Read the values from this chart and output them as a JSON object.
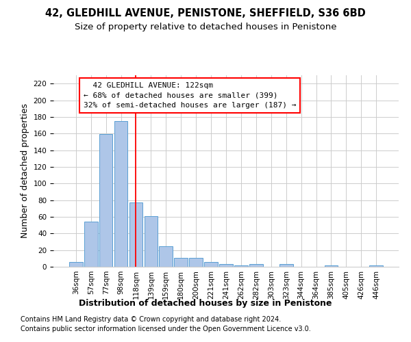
{
  "title1": "42, GLEDHILL AVENUE, PENISTONE, SHEFFIELD, S36 6BD",
  "title2": "Size of property relative to detached houses in Penistone",
  "xlabel": "Distribution of detached houses by size in Penistone",
  "ylabel": "Number of detached properties",
  "footnote1": "Contains HM Land Registry data © Crown copyright and database right 2024.",
  "footnote2": "Contains public sector information licensed under the Open Government Licence v3.0.",
  "categories": [
    "36sqm",
    "57sqm",
    "77sqm",
    "98sqm",
    "118sqm",
    "139sqm",
    "159sqm",
    "180sqm",
    "200sqm",
    "221sqm",
    "241sqm",
    "262sqm",
    "282sqm",
    "303sqm",
    "323sqm",
    "344sqm",
    "364sqm",
    "385sqm",
    "405sqm",
    "426sqm",
    "446sqm"
  ],
  "values": [
    6,
    54,
    159,
    175,
    77,
    61,
    25,
    11,
    11,
    6,
    3,
    2,
    3,
    0,
    3,
    0,
    0,
    2,
    0,
    0,
    2
  ],
  "bar_color": "#aec6e8",
  "bar_edge_color": "#5a9fd4",
  "annotation_text_line1": "  42 GLEDHILL AVENUE: 122sqm  ",
  "annotation_text_line2": "← 68% of detached houses are smaller (399)",
  "annotation_text_line3": "32% of semi-detached houses are larger (187) →",
  "annotation_box_color": "#cc0000",
  "vline_x_index": 4,
  "ylim": [
    0,
    230
  ],
  "yticks": [
    0,
    20,
    40,
    60,
    80,
    100,
    120,
    140,
    160,
    180,
    200,
    220
  ],
  "grid_color": "#cccccc",
  "background_color": "#ffffff",
  "title1_fontsize": 10.5,
  "title2_fontsize": 9.5,
  "axis_label_fontsize": 9,
  "tick_fontsize": 7.5,
  "annotation_fontsize": 8,
  "footnote_fontsize": 7
}
